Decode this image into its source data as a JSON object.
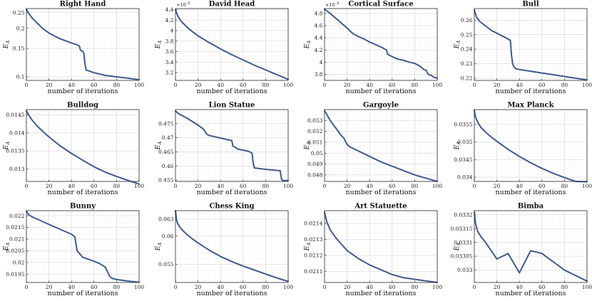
{
  "style": {
    "line_color": "#3f5a8c"
  },
  "chart_data": [
    {
      "type": "line",
      "title": "Right Hand",
      "xlabel": "number of iterations",
      "ylabel": "E_A",
      "xlim": [
        0,
        100
      ],
      "ylim": [
        0.095,
        0.265
      ],
      "yscale": "log",
      "xticks": [
        "0",
        "20",
        "40",
        "60",
        "80",
        "100"
      ],
      "yticks": [
        "0.1",
        "0.15",
        "0.2",
        "0.25"
      ],
      "yticks_val": [
        0.1,
        0.15,
        0.2,
        0.25
      ],
      "grid": true,
      "exponent": "",
      "series": [
        {
          "x": [
            0,
            2,
            5,
            10,
            15,
            20,
            25,
            30,
            35,
            40,
            45,
            47,
            48,
            50,
            51,
            52,
            53,
            55,
            60,
            70,
            80,
            90,
            100
          ],
          "y": [
            0.262,
            0.248,
            0.232,
            0.214,
            0.198,
            0.187,
            0.179,
            0.172,
            0.167,
            0.162,
            0.158,
            0.155,
            0.146,
            0.144,
            0.14,
            0.12,
            0.11,
            0.109,
            0.106,
            0.102,
            0.1,
            0.098,
            0.096
          ]
        }
      ]
    },
    {
      "type": "line",
      "title": "David Head",
      "xlabel": "number of iterations",
      "ylabel": "E_A",
      "xlim": [
        0,
        100
      ],
      "ylim": [
        3.05,
        4.42
      ],
      "yscale": "linear",
      "xticks": [
        "0",
        "20",
        "40",
        "60",
        "80",
        "100"
      ],
      "yticks": [
        "3.2",
        "3.4",
        "3.6",
        "3.8",
        "4",
        "4.2",
        "4.4"
      ],
      "yticks_val": [
        3.2,
        3.4,
        3.6,
        3.8,
        4.0,
        4.2,
        4.4
      ],
      "grid": true,
      "exponent": "-3",
      "series": [
        {
          "x": [
            0,
            2,
            5,
            10,
            15,
            20,
            30,
            40,
            50,
            60,
            70,
            80,
            90,
            100
          ],
          "y": [
            4.4,
            4.28,
            4.18,
            4.07,
            3.98,
            3.9,
            3.77,
            3.65,
            3.54,
            3.44,
            3.34,
            3.25,
            3.16,
            3.07
          ]
        }
      ]
    },
    {
      "type": "line",
      "title": "Cortical Surface",
      "xlabel": "number of iterations",
      "ylabel": "E_A",
      "xlim": [
        0,
        100
      ],
      "ylim": [
        3.7,
        4.88
      ],
      "yscale": "linear",
      "xticks": [
        "0",
        "20",
        "40",
        "60",
        "80",
        "100"
      ],
      "yticks": [
        "3.8",
        "4",
        "4.2",
        "4.4",
        "4.6",
        "4.8"
      ],
      "yticks_val": [
        3.8,
        4.0,
        4.2,
        4.4,
        4.6,
        4.8
      ],
      "grid": true,
      "exponent": "-3",
      "series": [
        {
          "x": [
            0,
            5,
            10,
            15,
            20,
            25,
            30,
            35,
            40,
            45,
            50,
            55,
            56,
            58,
            60,
            65,
            70,
            75,
            80,
            85,
            88,
            90,
            92,
            95,
            97,
            100
          ],
          "y": [
            4.87,
            4.8,
            4.72,
            4.64,
            4.56,
            4.47,
            4.42,
            4.38,
            4.33,
            4.29,
            4.25,
            4.2,
            4.13,
            4.11,
            4.09,
            4.05,
            4.03,
            4.0,
            3.98,
            3.93,
            3.88,
            3.87,
            3.8,
            3.78,
            3.75,
            3.74
          ]
        }
      ]
    },
    {
      "type": "line",
      "title": "Bull",
      "xlabel": "number of iterations",
      "ylabel": "E_A",
      "xlim": [
        0,
        100
      ],
      "ylim": [
        0.2185,
        0.268
      ],
      "yscale": "linear",
      "xticks": [
        "0",
        "20",
        "40",
        "60",
        "80",
        "100"
      ],
      "yticks": [
        "0.22",
        "0.23",
        "0.24",
        "0.25",
        "0.26"
      ],
      "yticks_val": [
        0.22,
        0.23,
        0.24,
        0.25,
        0.26
      ],
      "grid": true,
      "exponent": "",
      "series": [
        {
          "x": [
            0,
            2,
            5,
            10,
            15,
            20,
            25,
            30,
            32,
            33,
            34,
            35,
            37,
            40,
            50,
            60,
            70,
            80,
            90,
            100
          ],
          "y": [
            0.267,
            0.262,
            0.259,
            0.256,
            0.253,
            0.251,
            0.249,
            0.247,
            0.246,
            0.236,
            0.23,
            0.228,
            0.2265,
            0.226,
            0.2248,
            0.2236,
            0.2224,
            0.2212,
            0.22,
            0.2188
          ]
        }
      ]
    },
    {
      "type": "line",
      "title": "Bulldog",
      "xlabel": "number of iterations",
      "ylabel": "E_A",
      "xlim": [
        0,
        100
      ],
      "ylim": [
        0.01265,
        0.01465
      ],
      "yscale": "linear",
      "xticks": [
        "0",
        "20",
        "40",
        "60",
        "80",
        "100"
      ],
      "yticks": [
        "0.013",
        "0.0135",
        "0.014",
        "0.0145"
      ],
      "yticks_val": [
        0.013,
        0.0135,
        0.014,
        0.0145
      ],
      "grid": true,
      "exponent": "",
      "series": [
        {
          "x": [
            0,
            2,
            5,
            10,
            15,
            20,
            30,
            40,
            50,
            60,
            70,
            80,
            90,
            100
          ],
          "y": [
            0.01462,
            0.0145,
            0.01436,
            0.01418,
            0.01403,
            0.01389,
            0.01364,
            0.01343,
            0.01324,
            0.01306,
            0.01291,
            0.01279,
            0.01268,
            0.01258
          ]
        }
      ]
    },
    {
      "type": "line",
      "title": "Lion Statue",
      "xlabel": "number of iterations",
      "ylabel": "E_A",
      "xlim": [
        0,
        100
      ],
      "ylim": [
        0.4545,
        0.48
      ],
      "yscale": "linear",
      "xticks": [
        "0",
        "20",
        "40",
        "60",
        "80",
        "100"
      ],
      "yticks": [
        "0.455",
        "0.46",
        "0.465",
        "0.47",
        "0.475"
      ],
      "yticks_val": [
        0.455,
        0.46,
        0.465,
        0.47,
        0.475
      ],
      "grid": true,
      "exponent": "",
      "series": [
        {
          "x": [
            0,
            3,
            10,
            20,
            25,
            28,
            30,
            40,
            50,
            51,
            53,
            55,
            60,
            65,
            68,
            69,
            70,
            72,
            80,
            93,
            94,
            95,
            100
          ],
          "y": [
            0.4795,
            0.4785,
            0.477,
            0.4745,
            0.473,
            0.4712,
            0.4708,
            0.4699,
            0.469,
            0.467,
            0.4667,
            0.466,
            0.4656,
            0.4652,
            0.4645,
            0.461,
            0.4593,
            0.4592,
            0.4588,
            0.4583,
            0.4555,
            0.4548,
            0.4548
          ]
        }
      ]
    },
    {
      "type": "line",
      "title": "Gargoyle",
      "xlabel": "number of iterations",
      "ylabel": "E_A",
      "xlim": [
        0,
        100
      ],
      "ylim": [
        0.0474,
        0.054
      ],
      "yscale": "linear",
      "xticks": [
        "0",
        "20",
        "40",
        "60",
        "80",
        "100"
      ],
      "yticks": [
        "0.048",
        "0.049",
        "0.05",
        "0.051",
        "0.052",
        "0.053"
      ],
      "yticks_val": [
        0.048,
        0.049,
        0.05,
        0.051,
        0.052,
        0.053
      ],
      "grid": true,
      "exponent": "",
      "series": [
        {
          "x": [
            0,
            5,
            10,
            15,
            17,
            18,
            20,
            22,
            30,
            40,
            50,
            60,
            70,
            80,
            90,
            100
          ],
          "y": [
            0.0539,
            0.053,
            0.0523,
            0.0516,
            0.0514,
            0.0512,
            0.0508,
            0.0506,
            0.0502,
            0.0497,
            0.0492,
            0.0488,
            0.0484,
            0.048,
            0.0477,
            0.0474
          ]
        }
      ]
    },
    {
      "type": "line",
      "title": "Max Planck",
      "xlabel": "number of iterations",
      "ylabel": "E_A",
      "xlim": [
        0,
        100
      ],
      "ylim": [
        0.03388,
        0.03592
      ],
      "yscale": "linear",
      "xticks": [
        "0",
        "20",
        "40",
        "60",
        "80",
        "100"
      ],
      "yticks": [
        "0.034",
        "0.0345",
        "0.035",
        "0.0355"
      ],
      "yticks_val": [
        0.034,
        0.0345,
        0.035,
        0.0355
      ],
      "grid": true,
      "exponent": "",
      "series": [
        {
          "x": [
            0,
            1,
            3,
            6,
            10,
            15,
            20,
            30,
            40,
            50,
            60,
            70,
            80,
            90,
            100
          ],
          "y": [
            0.0359,
            0.03572,
            0.03556,
            0.03541,
            0.03528,
            0.03514,
            0.03502,
            0.03479,
            0.03459,
            0.03441,
            0.03425,
            0.03411,
            0.03399,
            0.03388,
            0.03387
          ]
        }
      ]
    },
    {
      "type": "line",
      "title": "Bunny",
      "xlabel": "number of iterations",
      "ylabel": "E_A",
      "xlim": [
        0,
        100
      ],
      "ylim": [
        0.01914,
        0.02222
      ],
      "yscale": "linear",
      "xticks": [
        "0",
        "20",
        "40",
        "60",
        "80",
        "100"
      ],
      "yticks": [
        "0.0195",
        "0.02",
        "0.0205",
        "0.021",
        "0.0215",
        "0.022"
      ],
      "yticks_val": [
        0.0195,
        0.02,
        0.0205,
        0.021,
        0.0215,
        0.022
      ],
      "grid": true,
      "exponent": "",
      "series": [
        {
          "x": [
            0,
            2,
            5,
            10,
            20,
            30,
            40,
            43,
            44,
            45,
            50,
            60,
            65,
            70,
            72,
            74,
            76,
            80,
            90,
            100
          ],
          "y": [
            0.0222,
            0.02205,
            0.02195,
            0.02185,
            0.02163,
            0.02142,
            0.02121,
            0.0211,
            0.0208,
            0.0205,
            0.02022,
            0.02005,
            0.01995,
            0.0198,
            0.0196,
            0.0194,
            0.01932,
            0.01927,
            0.0192,
            0.01915
          ]
        }
      ]
    },
    {
      "type": "line",
      "title": "Chess King",
      "xlabel": "number of iterations",
      "ylabel": "E_A",
      "xlim": [
        0,
        100
      ],
      "ylim": [
        0.0518,
        0.0645
      ],
      "yscale": "linear",
      "xticks": [
        "0",
        "20",
        "40",
        "60",
        "80",
        "100"
      ],
      "yticks": [
        "0.055",
        "0.06",
        "0.063"
      ],
      "yticks_val": [
        0.055,
        0.06,
        0.063
      ],
      "grid": true,
      "exponent": "",
      "series": [
        {
          "x": [
            0,
            1,
            2,
            3,
            5,
            10,
            15,
            20,
            30,
            40,
            50,
            60,
            70,
            80,
            90,
            100
          ],
          "y": [
            0.0645,
            0.0628,
            0.0622,
            0.0619,
            0.0613,
            0.0603,
            0.0595,
            0.0588,
            0.0575,
            0.0564,
            0.0555,
            0.0547,
            0.054,
            0.0533,
            0.0526,
            0.052
          ]
        }
      ]
    },
    {
      "type": "line",
      "title": "Art Statuette",
      "xlabel": "number of iterations",
      "ylabel": "E_A",
      "xlim": [
        0,
        100
      ],
      "ylim": [
        0.02103,
        0.02148
      ],
      "yscale": "linear",
      "xticks": [
        "0",
        "20",
        "40",
        "60",
        "80",
        "100"
      ],
      "yticks": [
        "0.0211",
        "0.0212",
        "0.0213",
        "0.0214"
      ],
      "yticks_val": [
        0.0211,
        0.0212,
        0.0213,
        0.0214
      ],
      "grid": true,
      "exponent": "",
      "series": [
        {
          "x": [
            0,
            2,
            5,
            10,
            15,
            20,
            30,
            40,
            50,
            60,
            70,
            80,
            90,
            100
          ],
          "y": [
            0.02147,
            0.02141,
            0.02136,
            0.02131,
            0.02127,
            0.02123,
            0.02118,
            0.02114,
            0.02111,
            0.02108,
            0.02106,
            0.02105,
            0.02104,
            0.02103
          ]
        }
      ]
    },
    {
      "type": "line",
      "title": "Bimba",
      "xlabel": "number of iterations",
      "ylabel": "E_A",
      "xlim": [
        0,
        100
      ],
      "ylim": [
        0.032955,
        0.033215
      ],
      "yscale": "linear",
      "xticks": [
        "0",
        "20",
        "40",
        "60",
        "80",
        "100"
      ],
      "yticks": [
        "0.033",
        "0.03305",
        "0.0331",
        "0.03315",
        "0.0332"
      ],
      "yticks_val": [
        0.033,
        0.03305,
        0.0331,
        0.03315,
        0.0332
      ],
      "grid": true,
      "exponent": "",
      "series": [
        {
          "x": [
            0,
            1,
            3,
            6,
            10,
            15,
            20,
            30,
            40,
            50,
            60,
            70,
            80,
            90,
            100
          ],
          "y": [
            0.03321,
            0.03317,
            0.03314,
            0.03312,
            0.0331,
            0.03307,
            0.03304,
            0.03306,
            0.03299,
            0.03307,
            0.03306,
            0.03303,
            0.033,
            0.03298,
            0.03296
          ]
        }
      ]
    }
  ]
}
